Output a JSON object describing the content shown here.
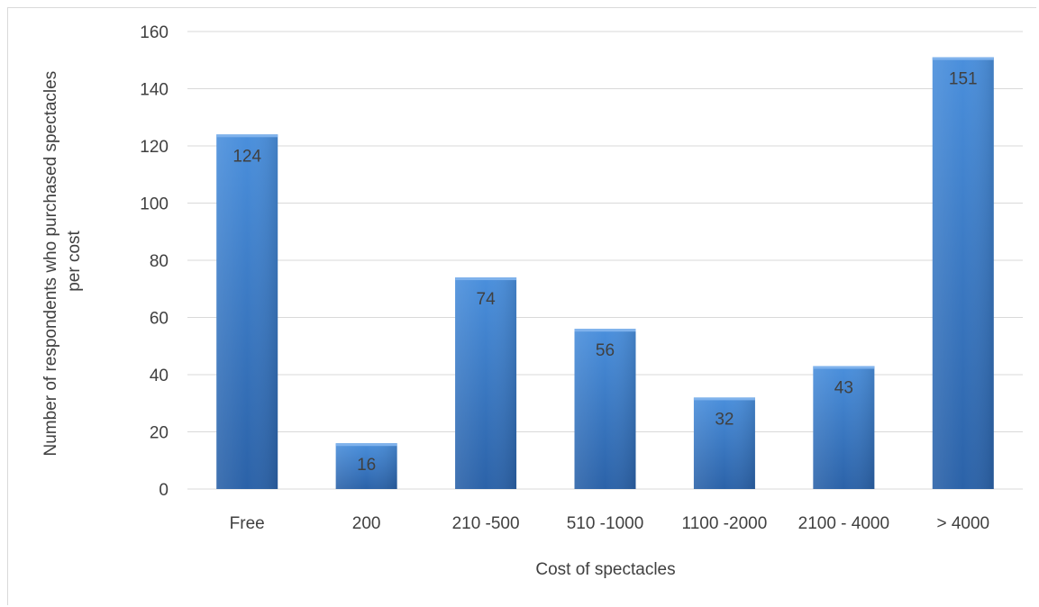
{
  "chart_data": {
    "type": "bar",
    "categories": [
      "Free",
      "200",
      "210 -500",
      "510 -1000",
      "1100 -2000",
      "2100 - 4000",
      "> 4000"
    ],
    "values": [
      124,
      16,
      74,
      56,
      32,
      43,
      151
    ],
    "xlabel": "Cost of spectacles",
    "ylabel": [
      "Number of respondents who purchased spectacles",
      "per cost"
    ],
    "ylim": [
      0,
      160
    ],
    "yticks": [
      0,
      20,
      40,
      60,
      80,
      100,
      120,
      140,
      160
    ],
    "grid": true,
    "data_labels": true,
    "colors": {
      "bar_light": "#4a8fdc",
      "bar_dark": "#2b62a8",
      "grid": "#d9d9d9",
      "text": "#404040"
    }
  }
}
